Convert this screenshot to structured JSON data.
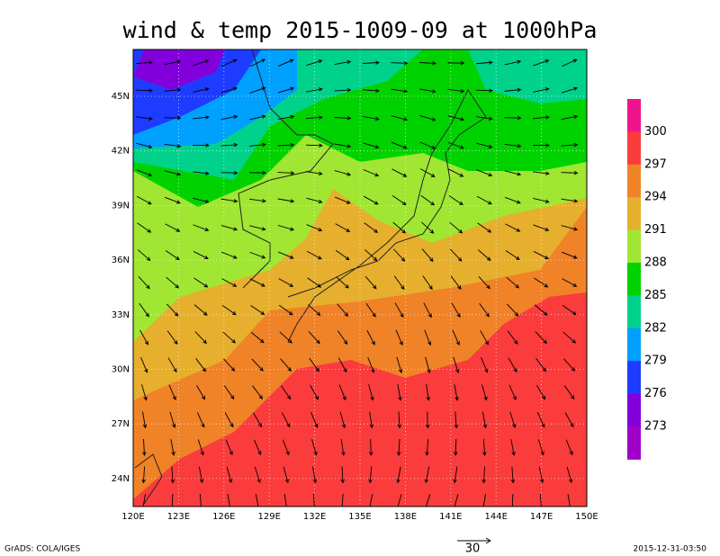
{
  "title": "wind & temp 2015-1009-09 at 1000hPa",
  "map": {
    "lat_labels": [
      "45N",
      "42N",
      "39N",
      "36N",
      "33N",
      "30N",
      "27N",
      "24N"
    ],
    "lon_labels": [
      "120E",
      "123E",
      "126E",
      "129E",
      "132E",
      "135E",
      "138E",
      "141E",
      "144E",
      "147E",
      "150E"
    ]
  },
  "colorbar": {
    "labels": [
      300,
      297,
      294,
      291,
      288,
      285,
      282,
      279,
      276,
      273
    ],
    "colors": [
      "#f0148c",
      "#fa3c3c",
      "#f08228",
      "#e6af2d",
      "#a0e632",
      "#00d200",
      "#00d28c",
      "#00a0ff",
      "#1e3cff",
      "#8200dc",
      "#a000c8"
    ]
  },
  "footer": {
    "left": "GrADS: COLA/IGES",
    "vector_scale": "30",
    "timestamp": "2015-12-31-03:50"
  }
}
